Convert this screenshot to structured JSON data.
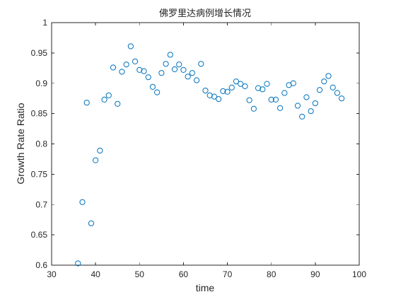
{
  "chart_data": {
    "type": "scatter",
    "title": "佛罗里达病例增长情况",
    "xlabel": "time",
    "ylabel": "Growth Rate Ratio",
    "xlim": [
      30,
      100
    ],
    "ylim": [
      0.6,
      1.0
    ],
    "xticks": [
      30,
      40,
      50,
      60,
      70,
      80,
      90,
      100
    ],
    "xtick_labels": [
      "30",
      "40",
      "50",
      "60",
      "70",
      "80",
      "90",
      "100"
    ],
    "yticks": [
      0.6,
      0.65,
      0.7,
      0.75,
      0.8,
      0.85,
      0.9,
      0.95,
      1.0
    ],
    "ytick_labels": [
      "0.6",
      "0.65",
      "0.7",
      "0.75",
      "0.8",
      "0.85",
      "0.9",
      "0.95",
      "1"
    ],
    "grid": false,
    "marker": "open-circle",
    "marker_color": "#0072BD",
    "axis_color": "#262626",
    "series": [
      {
        "points": [
          [
            36,
            0.603
          ],
          [
            37,
            0.704
          ],
          [
            38,
            0.868
          ],
          [
            39,
            0.669
          ],
          [
            40,
            0.773
          ],
          [
            41,
            0.789
          ],
          [
            42,
            0.873
          ],
          [
            43,
            0.88
          ],
          [
            44,
            0.926
          ],
          [
            45,
            0.866
          ],
          [
            46,
            0.919
          ],
          [
            47,
            0.931
          ],
          [
            48,
            0.961
          ],
          [
            49,
            0.936
          ],
          [
            50,
            0.922
          ],
          [
            51,
            0.92
          ],
          [
            52,
            0.91
          ],
          [
            53,
            0.894
          ],
          [
            54,
            0.885
          ],
          [
            55,
            0.917
          ],
          [
            56,
            0.932
          ],
          [
            57,
            0.947
          ],
          [
            58,
            0.923
          ],
          [
            59,
            0.931
          ],
          [
            60,
            0.922
          ],
          [
            61,
            0.911
          ],
          [
            62,
            0.917
          ],
          [
            63,
            0.905
          ],
          [
            64,
            0.932
          ],
          [
            65,
            0.888
          ],
          [
            66,
            0.88
          ],
          [
            67,
            0.878
          ],
          [
            68,
            0.874
          ],
          [
            69,
            0.887
          ],
          [
            70,
            0.886
          ],
          [
            71,
            0.893
          ],
          [
            72,
            0.903
          ],
          [
            73,
            0.899
          ],
          [
            74,
            0.895
          ],
          [
            75,
            0.872
          ],
          [
            76,
            0.858
          ],
          [
            77,
            0.892
          ],
          [
            78,
            0.89
          ],
          [
            79,
            0.899
          ],
          [
            80,
            0.873
          ],
          [
            81,
            0.873
          ],
          [
            82,
            0.859
          ],
          [
            83,
            0.884
          ],
          [
            84,
            0.897
          ],
          [
            85,
            0.9
          ],
          [
            86,
            0.863
          ],
          [
            87,
            0.845
          ],
          [
            88,
            0.877
          ],
          [
            89,
            0.854
          ],
          [
            90,
            0.867
          ],
          [
            91,
            0.889
          ],
          [
            92,
            0.903
          ],
          [
            93,
            0.912
          ],
          [
            94,
            0.893
          ],
          [
            95,
            0.884
          ],
          [
            96,
            0.875
          ]
        ]
      }
    ]
  }
}
